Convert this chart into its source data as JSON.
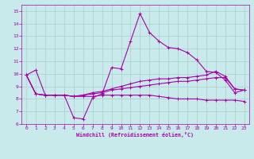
{
  "xlabel": "Windchill (Refroidissement éolien,°C)",
  "bg_color": "#c8eaea",
  "line_color": "#aa00aa",
  "grid_color": "#aacccc",
  "x_ticks": [
    0,
    1,
    2,
    3,
    4,
    5,
    6,
    7,
    8,
    9,
    10,
    11,
    12,
    13,
    14,
    15,
    16,
    17,
    18,
    19,
    20,
    21,
    22,
    23
  ],
  "y_ticks": [
    6,
    7,
    8,
    9,
    10,
    11,
    12,
    13,
    14,
    15
  ],
  "xlim": [
    -0.5,
    23.5
  ],
  "ylim": [
    6,
    15.5
  ],
  "lines": [
    {
      "x": [
        0,
        1,
        2,
        3,
        4,
        5,
        6,
        7,
        8,
        9,
        10,
        11,
        12,
        13,
        14,
        15,
        16,
        17,
        18,
        19,
        20,
        21,
        22,
        23
      ],
      "y": [
        9.9,
        10.3,
        8.3,
        8.3,
        8.3,
        6.5,
        6.4,
        8.1,
        8.4,
        10.5,
        10.4,
        12.6,
        14.8,
        13.3,
        12.6,
        12.1,
        12.0,
        11.7,
        11.1,
        10.2,
        10.1,
        9.5,
        8.5,
        8.7
      ]
    },
    {
      "x": [
        0,
        1,
        2,
        3,
        4,
        5,
        6,
        7,
        8,
        9,
        10,
        11,
        12,
        13,
        14,
        15,
        16,
        17,
        18,
        19,
        20,
        21,
        22,
        23
      ],
      "y": [
        9.9,
        8.4,
        8.3,
        8.3,
        8.3,
        8.2,
        8.2,
        8.2,
        8.3,
        8.3,
        8.3,
        8.3,
        8.3,
        8.3,
        8.2,
        8.1,
        8.0,
        8.0,
        8.0,
        7.9,
        7.9,
        7.9,
        7.9,
        7.8
      ]
    },
    {
      "x": [
        0,
        1,
        2,
        3,
        4,
        5,
        6,
        7,
        8,
        9,
        10,
        11,
        12,
        13,
        14,
        15,
        16,
        17,
        18,
        19,
        20,
        21,
        22,
        23
      ],
      "y": [
        9.9,
        8.4,
        8.3,
        8.3,
        8.3,
        8.2,
        8.3,
        8.4,
        8.5,
        8.7,
        8.8,
        8.9,
        9.0,
        9.1,
        9.2,
        9.3,
        9.4,
        9.4,
        9.5,
        9.6,
        9.7,
        9.7,
        8.8,
        8.7
      ]
    },
    {
      "x": [
        0,
        1,
        2,
        3,
        4,
        5,
        6,
        7,
        8,
        9,
        10,
        11,
        12,
        13,
        14,
        15,
        16,
        17,
        18,
        19,
        20,
        21,
        22,
        23
      ],
      "y": [
        9.9,
        8.4,
        8.3,
        8.3,
        8.3,
        8.2,
        8.3,
        8.5,
        8.6,
        8.8,
        9.0,
        9.2,
        9.4,
        9.5,
        9.6,
        9.6,
        9.7,
        9.7,
        9.8,
        9.9,
        10.2,
        9.8,
        8.8,
        8.7
      ]
    }
  ]
}
